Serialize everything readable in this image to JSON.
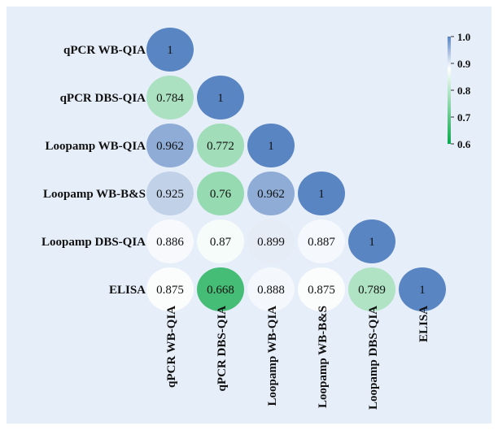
{
  "chart_data": {
    "type": "heatmap",
    "title": "",
    "variables": [
      "qPCR WB-QIA",
      "qPCR DBS-QIA",
      "Loopamp WB-QIA",
      "Loopamp WB-B&S",
      "Loopamp DBS-QIA",
      "ELISA"
    ],
    "values": [
      [
        1
      ],
      [
        0.784,
        1
      ],
      [
        0.962,
        0.772,
        1
      ],
      [
        0.925,
        0.76,
        0.962,
        1
      ],
      [
        0.886,
        0.87,
        0.899,
        0.887,
        1
      ],
      [
        0.875,
        0.668,
        0.888,
        0.875,
        0.789,
        1
      ]
    ],
    "value_labels": [
      [
        "1"
      ],
      [
        "0.784",
        "1"
      ],
      [
        "0.962",
        "0.772",
        "1"
      ],
      [
        "0.925",
        "0.76",
        "0.962",
        "1"
      ],
      [
        "0.886",
        "0.87",
        "0.899",
        "0.887",
        "1"
      ],
      [
        "0.875",
        "0.668",
        "0.888",
        "0.875",
        "0.789",
        "1"
      ]
    ],
    "colorbar": {
      "min": 0.6,
      "max": 1.0,
      "ticks": [
        1.0,
        0.9,
        0.8,
        0.7,
        0.6
      ],
      "tick_labels": [
        "1.0",
        "0.9",
        "0.8",
        "0.7",
        "0.6"
      ],
      "colors": {
        "low": "#0aa84a",
        "mid": "#ffffff",
        "high": "#5a85c3"
      },
      "mid_value": 0.88
    },
    "legend_position": "right"
  }
}
